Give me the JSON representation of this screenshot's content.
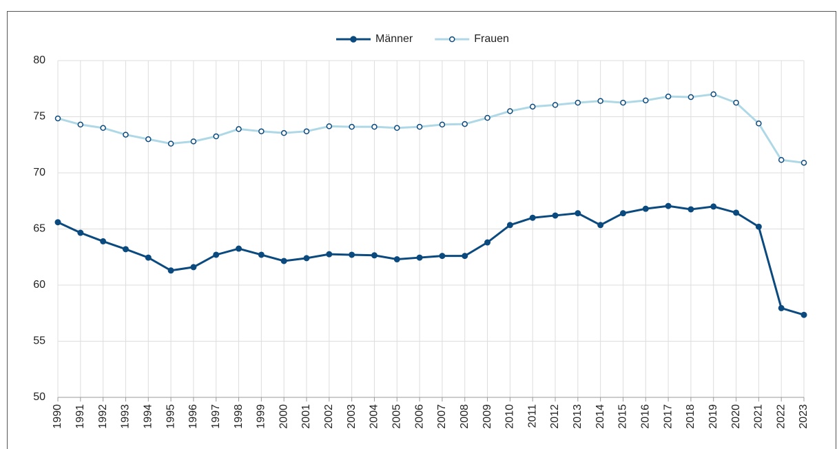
{
  "chart_data": {
    "type": "line",
    "categories": [
      "1990",
      "1991",
      "1992",
      "1993",
      "1994",
      "1995",
      "1996",
      "1997",
      "1998",
      "1999",
      "2000",
      "2001",
      "2002",
      "2003",
      "2004",
      "2005",
      "2006",
      "2007",
      "2008",
      "2009",
      "2010",
      "2011",
      "2012",
      "2013",
      "2014",
      "2015",
      "2016",
      "2017",
      "2018",
      "2019",
      "2020",
      "2021",
      "2022",
      "2023"
    ],
    "series": [
      {
        "name": "Männer",
        "color": "#0b4a7e",
        "marker": "filled",
        "values": [
          65.6,
          64.66,
          63.9,
          63.2,
          62.45,
          61.3,
          61.6,
          62.7,
          63.25,
          62.7,
          62.15,
          62.4,
          62.75,
          62.7,
          62.65,
          62.3,
          62.45,
          62.6,
          62.6,
          63.8,
          65.35,
          66.0,
          66.2,
          66.4,
          65.35,
          66.4,
          66.8,
          67.05,
          66.75,
          67.0,
          66.45,
          65.2,
          57.95,
          57.35
        ]
      },
      {
        "name": "Frauen",
        "color": "#aed8e6",
        "marker": "open",
        "values": [
          74.85,
          74.3,
          74.0,
          73.4,
          73.0,
          72.6,
          72.8,
          73.25,
          73.9,
          73.7,
          73.55,
          73.7,
          74.15,
          74.1,
          74.1,
          74.0,
          74.1,
          74.3,
          74.35,
          74.9,
          75.5,
          75.9,
          76.05,
          76.25,
          76.4,
          76.25,
          76.45,
          76.8,
          76.75,
          77.0,
          76.25,
          74.4,
          71.15,
          70.9
        ]
      }
    ],
    "ylim": [
      50,
      80
    ],
    "yticks": [
      50,
      55,
      60,
      65,
      70,
      75,
      80
    ],
    "grid": true,
    "legend": "top"
  }
}
